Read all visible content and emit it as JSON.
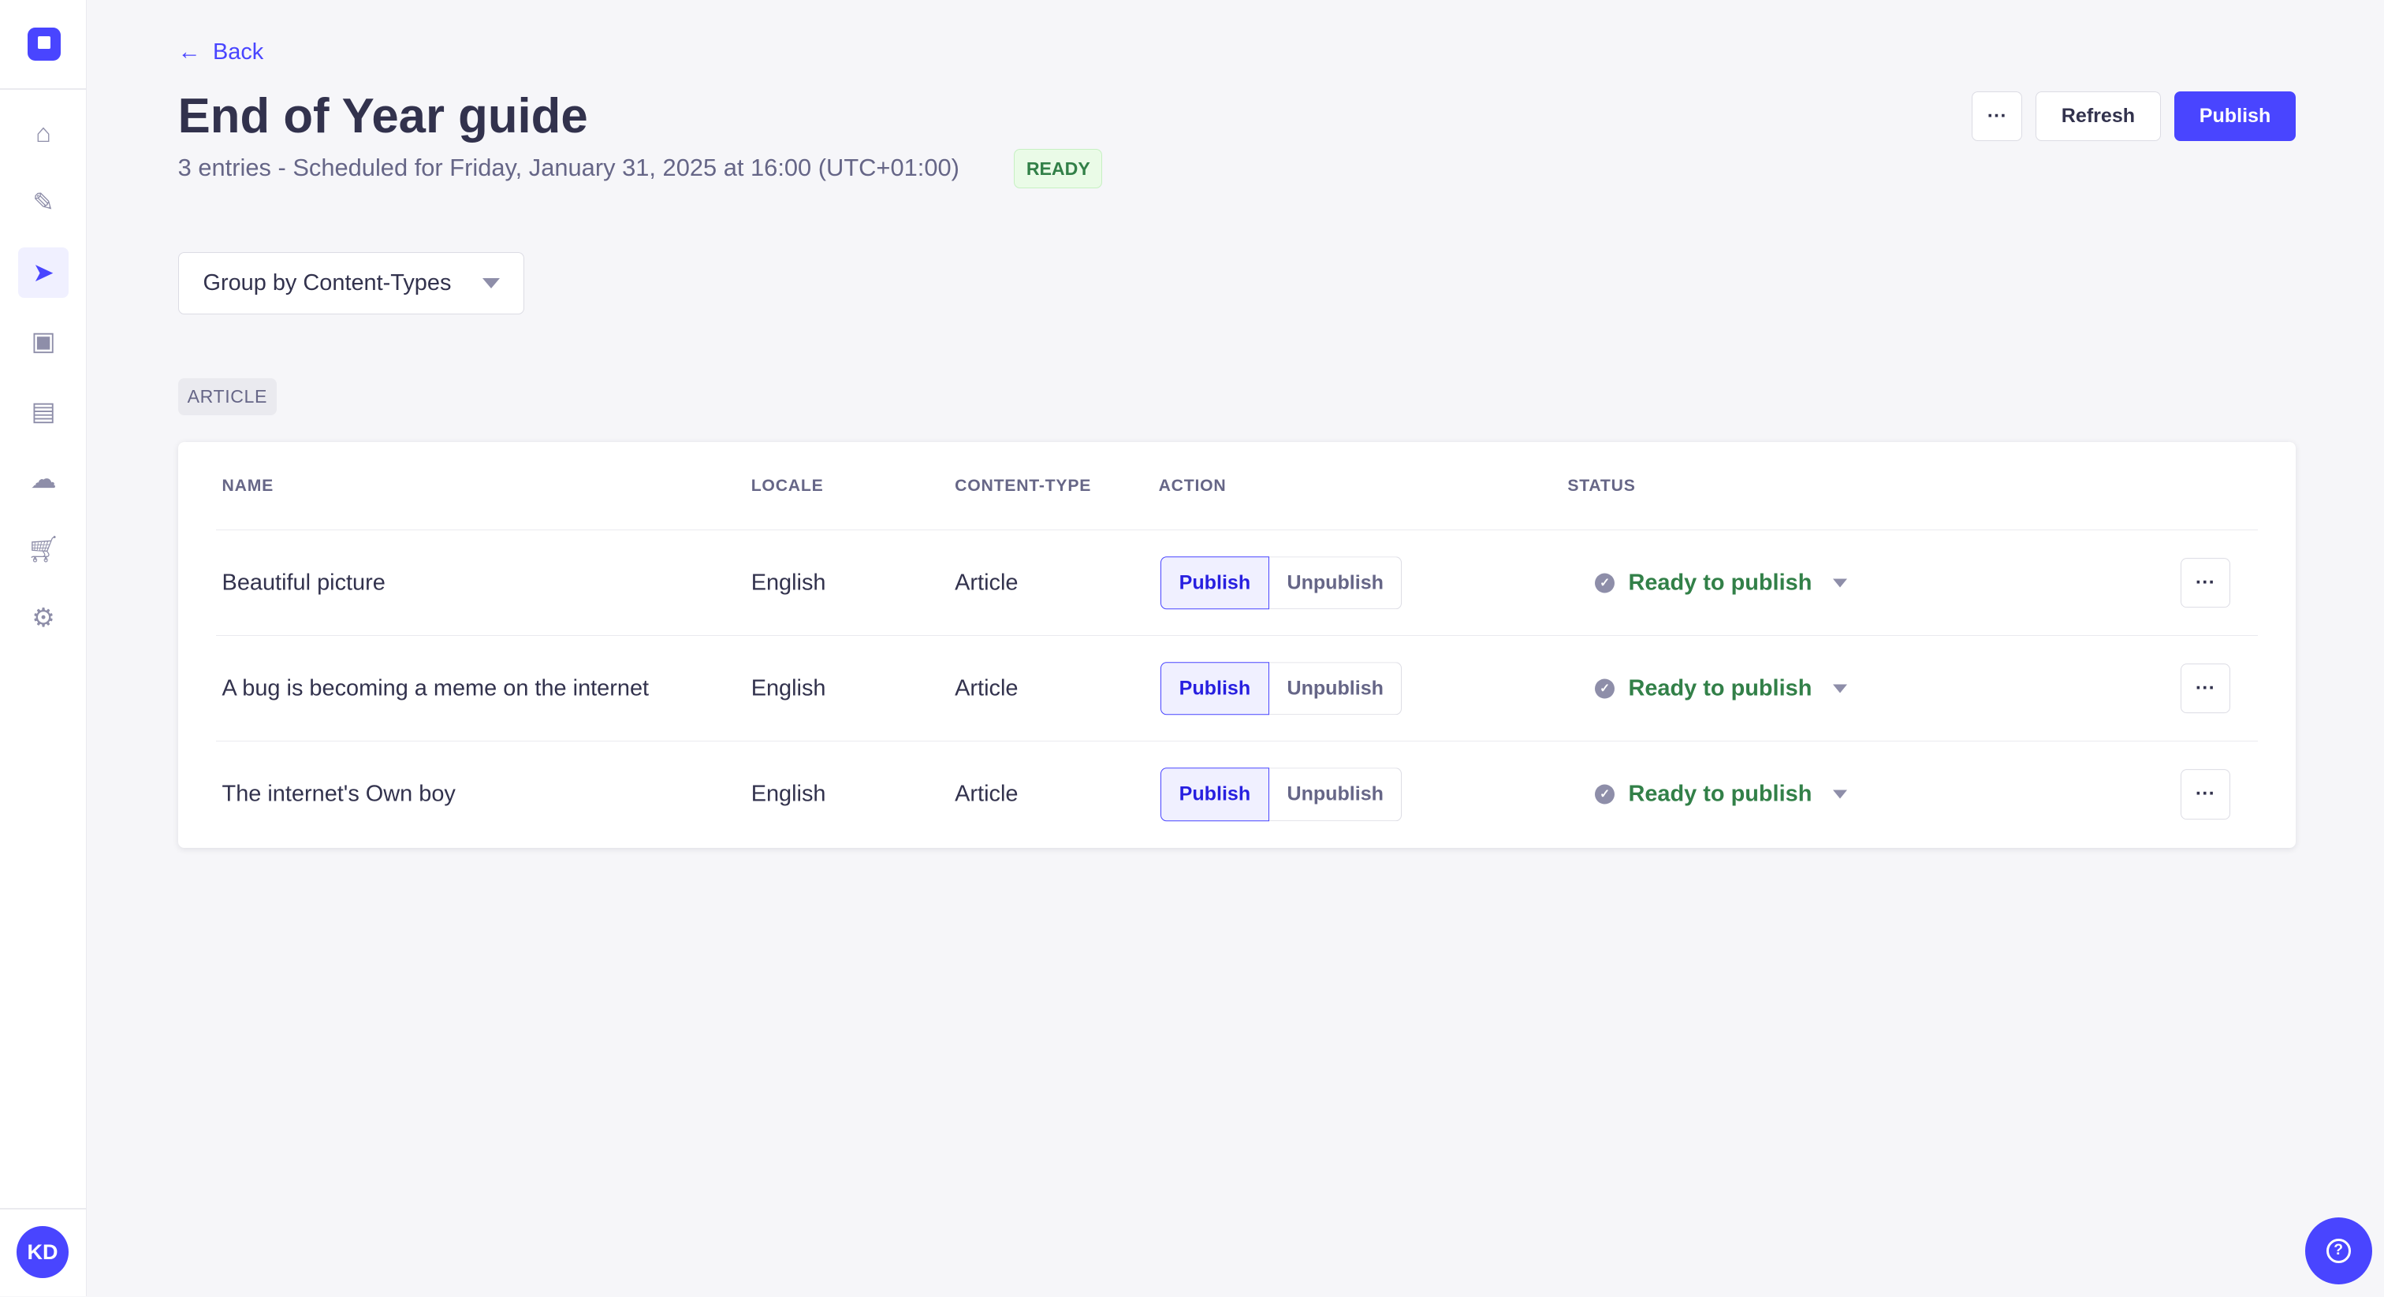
{
  "sidebar": {
    "avatar_initials": "KD",
    "items": [
      {
        "icon": "home-icon"
      },
      {
        "icon": "feather-icon"
      },
      {
        "icon": "paper-plane-icon",
        "active": true
      },
      {
        "icon": "images-icon"
      },
      {
        "icon": "layout-icon"
      },
      {
        "icon": "cloud-icon"
      },
      {
        "icon": "cart-icon"
      },
      {
        "icon": "gear-icon"
      }
    ]
  },
  "header": {
    "back_label": "Back",
    "title": "End of Year guide",
    "subtitle": "3 entries - Scheduled for Friday, January 31, 2025 at 16:00 (UTC+01:00)",
    "status_badge": "READY",
    "more_label": "···",
    "refresh_label": "Refresh",
    "publish_label": "Publish"
  },
  "group_select": {
    "value": "Group by Content-Types"
  },
  "group_tag": "ARTICLE",
  "table": {
    "columns": [
      "NAME",
      "LOCALE",
      "CONTENT-TYPE",
      "ACTION",
      "STATUS"
    ],
    "rows": [
      {
        "name": "Beautiful picture",
        "locale": "English",
        "content_type": "Article",
        "publish": "Publish",
        "unpublish": "Unpublish",
        "status": "Ready to publish",
        "more": "···"
      },
      {
        "name": "A bug is becoming a meme on the internet",
        "locale": "English",
        "content_type": "Article",
        "publish": "Publish",
        "unpublish": "Unpublish",
        "status": "Ready to publish",
        "more": "···"
      },
      {
        "name": "The internet's Own boy",
        "locale": "English",
        "content_type": "Article",
        "publish": "Publish",
        "unpublish": "Unpublish",
        "status": "Ready to publish",
        "more": "···"
      }
    ]
  },
  "colors": {
    "primary": "#4945ff",
    "success": "#328048"
  }
}
